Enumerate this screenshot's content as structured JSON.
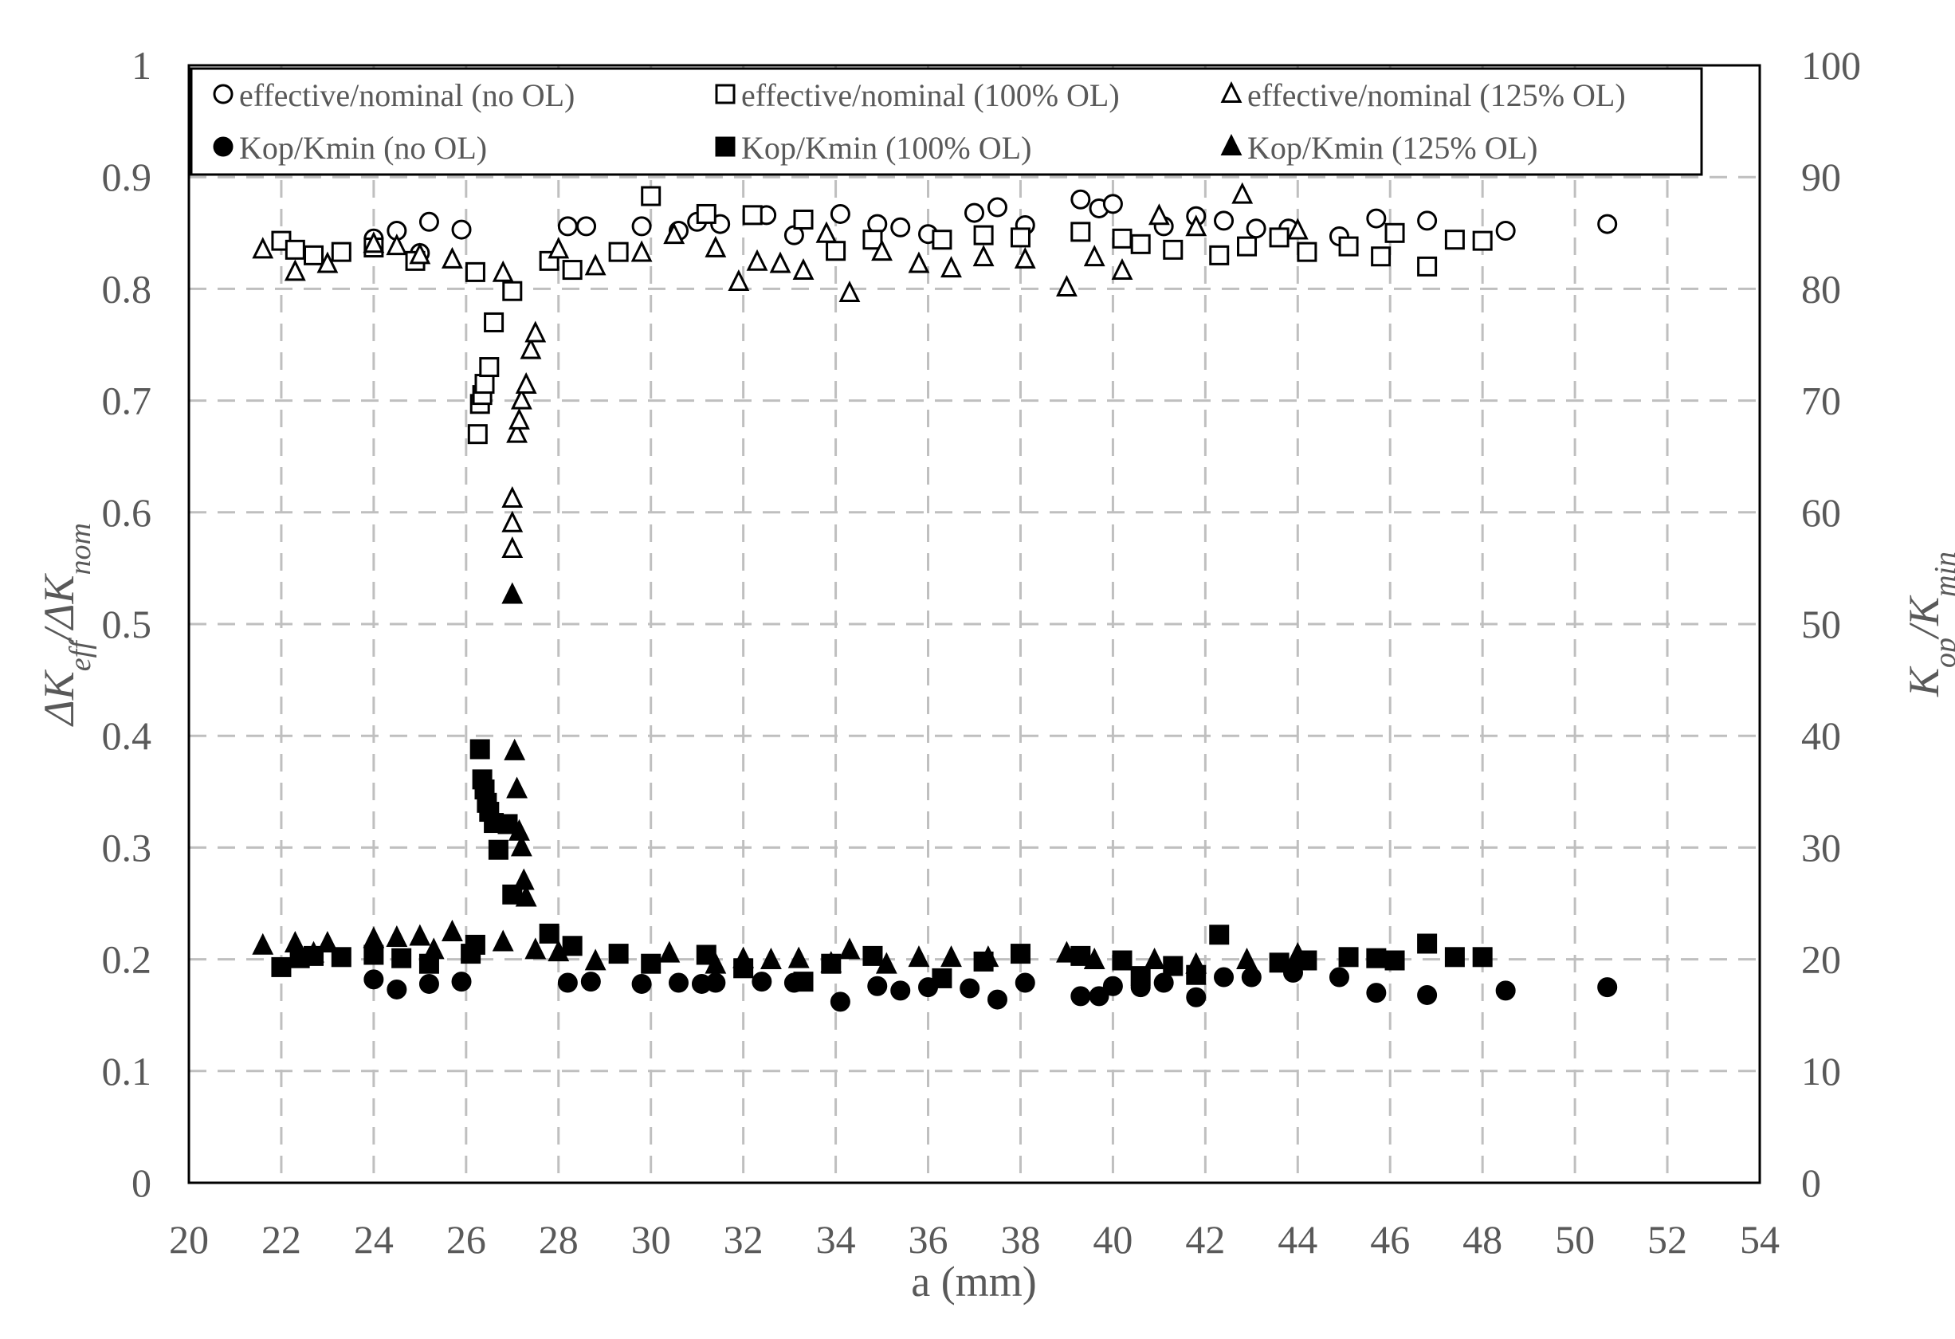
{
  "chart_data": {
    "type": "scatter",
    "title": "",
    "xlabel": "a (mm)",
    "ylabel_left": "ΔKeff/ΔKnom",
    "ylabel_right": "Kop/Kmin",
    "xlim": [
      20,
      54
    ],
    "ylim_left": [
      0,
      1
    ],
    "ylim_right": [
      0,
      100
    ],
    "x_ticks": [
      "20",
      "22",
      "24",
      "26",
      "28",
      "30",
      "32",
      "34",
      "36",
      "38",
      "40",
      "42",
      "44",
      "46",
      "48",
      "50",
      "52",
      "54"
    ],
    "y_left_ticks": [
      "0",
      "0.1",
      "0.2",
      "0.3",
      "0.4",
      "0.5",
      "0.6",
      "0.7",
      "0.8",
      "0.9",
      "1"
    ],
    "y_right_ticks": [
      "0",
      "10",
      "20",
      "30",
      "40",
      "50",
      "60",
      "70",
      "80",
      "90",
      "100"
    ],
    "grid": true,
    "legend_position": "top",
    "series": [
      {
        "name": "effective/nominal (no OL)",
        "axis": "left",
        "marker": "circle",
        "filled": false,
        "x": [
          24.0,
          24.5,
          25.0,
          25.2,
          25.9,
          28.2,
          28.6,
          29.8,
          30.6,
          31.0,
          31.5,
          32.5,
          33.1,
          34.1,
          34.9,
          35.4,
          36.0,
          37.0,
          37.5,
          38.1,
          39.3,
          39.7,
          40.0,
          41.1,
          41.8,
          42.4,
          43.1,
          43.8,
          44.9,
          45.7,
          46.8,
          48.5,
          50.7
        ],
        "y": [
          0.845,
          0.852,
          0.832,
          0.86,
          0.853,
          0.856,
          0.856,
          0.856,
          0.852,
          0.86,
          0.858,
          0.866,
          0.848,
          0.867,
          0.858,
          0.855,
          0.849,
          0.868,
          0.873,
          0.857,
          0.88,
          0.872,
          0.876,
          0.856,
          0.865,
          0.861,
          0.854,
          0.854,
          0.847,
          0.863,
          0.861,
          0.852,
          0.858
        ]
      },
      {
        "name": "effective/nominal (100% OL)",
        "axis": "left",
        "marker": "square",
        "filled": false,
        "x": [
          22.0,
          22.3,
          22.7,
          23.3,
          24.0,
          24.9,
          26.2,
          26.25,
          26.3,
          26.35,
          26.4,
          26.5,
          26.6,
          27.0,
          27.8,
          28.3,
          29.3,
          30.0,
          31.2,
          32.2,
          33.3,
          34.0,
          34.8,
          36.3,
          37.2,
          38.0,
          39.3,
          40.2,
          40.6,
          41.3,
          42.3,
          42.9,
          43.6,
          44.2,
          45.1,
          45.8,
          46.1,
          46.8,
          47.4,
          48.0
        ],
        "y": [
          0.843,
          0.835,
          0.83,
          0.833,
          0.837,
          0.825,
          0.815,
          0.67,
          0.697,
          0.705,
          0.715,
          0.73,
          0.77,
          0.798,
          0.825,
          0.817,
          0.833,
          0.883,
          0.867,
          0.866,
          0.862,
          0.834,
          0.844,
          0.844,
          0.848,
          0.846,
          0.851,
          0.845,
          0.84,
          0.835,
          0.83,
          0.838,
          0.846,
          0.833,
          0.838,
          0.829,
          0.85,
          0.82,
          0.844,
          0.843
        ]
      },
      {
        "name": "effective/nominal (125% OL)",
        "axis": "left",
        "marker": "triangle",
        "filled": false,
        "x": [
          21.6,
          22.3,
          23.0,
          24.0,
          24.5,
          25.0,
          25.7,
          26.8,
          27.0,
          27.0,
          27.0,
          27.1,
          27.15,
          27.2,
          27.3,
          27.4,
          27.5,
          28.0,
          28.8,
          29.8,
          30.5,
          31.4,
          31.9,
          32.3,
          32.8,
          33.3,
          33.8,
          34.3,
          35.0,
          35.8,
          36.5,
          37.2,
          38.1,
          39.0,
          39.6,
          40.2,
          41.0,
          41.8,
          42.8,
          44.0
        ],
        "y": [
          0.835,
          0.815,
          0.822,
          0.84,
          0.838,
          0.83,
          0.826,
          0.814,
          0.567,
          0.59,
          0.612,
          0.67,
          0.682,
          0.7,
          0.714,
          0.745,
          0.76,
          0.835,
          0.82,
          0.832,
          0.848,
          0.836,
          0.806,
          0.824,
          0.822,
          0.816,
          0.849,
          0.796,
          0.833,
          0.822,
          0.818,
          0.828,
          0.826,
          0.801,
          0.828,
          0.816,
          0.865,
          0.855,
          0.884,
          0.852
        ]
      },
      {
        "name": "Kop/Kmin (no OL)",
        "axis": "right",
        "marker": "circle",
        "filled": true,
        "x": [
          24.0,
          24.5,
          25.2,
          25.9,
          28.2,
          28.7,
          29.8,
          30.6,
          31.1,
          31.4,
          32.4,
          33.1,
          34.1,
          34.9,
          35.4,
          36.0,
          36.9,
          37.5,
          38.1,
          39.3,
          39.7,
          40.0,
          40.6,
          41.1,
          41.8,
          42.4,
          43.0,
          43.9,
          44.9,
          45.7,
          46.8,
          48.5,
          50.7
        ],
        "y": [
          18.2,
          17.3,
          17.8,
          18.0,
          17.9,
          18.0,
          17.8,
          17.9,
          17.8,
          17.9,
          18.0,
          17.9,
          16.2,
          17.6,
          17.2,
          17.5,
          17.4,
          16.4,
          17.9,
          16.7,
          16.7,
          17.6,
          17.5,
          17.9,
          16.6,
          18.4,
          18.4,
          18.8,
          18.4,
          17.0,
          16.8,
          17.2,
          17.5
        ]
      },
      {
        "name": "Kop/Kmin (100% OL)",
        "axis": "right",
        "marker": "square",
        "filled": true,
        "x": [
          22.0,
          22.4,
          22.7,
          23.3,
          24.0,
          24.6,
          25.2,
          26.1,
          26.2,
          26.3,
          26.35,
          26.4,
          26.45,
          26.5,
          26.6,
          26.7,
          26.9,
          27.0,
          27.8,
          28.3,
          29.3,
          30.0,
          31.2,
          32.0,
          33.3,
          33.9,
          34.8,
          36.3,
          37.2,
          38.0,
          39.3,
          40.2,
          40.6,
          41.3,
          41.8,
          42.3,
          43.6,
          44.2,
          45.1,
          45.7,
          46.1,
          46.8,
          47.4,
          48.0
        ],
        "y": [
          19.3,
          20.1,
          20.3,
          20.2,
          20.4,
          20.1,
          19.6,
          20.5,
          21.3,
          38.8,
          36.1,
          35.2,
          34.0,
          33.2,
          32.2,
          29.8,
          32.1,
          25.8,
          22.3,
          21.2,
          20.5,
          19.6,
          20.4,
          19.2,
          18.0,
          19.6,
          20.3,
          18.3,
          19.8,
          20.5,
          20.3,
          19.9,
          18.5,
          19.4,
          18.6,
          22.2,
          19.7,
          19.9,
          20.2,
          20.1,
          19.9,
          21.4,
          20.2,
          20.2
        ]
      },
      {
        "name": "Kop/Kmin (125% OL)",
        "axis": "right",
        "marker": "triangle",
        "filled": true,
        "x": [
          21.6,
          22.3,
          22.7,
          23.0,
          24.0,
          24.5,
          25.0,
          25.3,
          25.7,
          26.8,
          27.0,
          27.05,
          27.1,
          27.15,
          27.2,
          27.25,
          27.3,
          27.5,
          28.0,
          28.8,
          30.4,
          31.4,
          32.0,
          32.6,
          33.2,
          33.9,
          34.3,
          35.1,
          35.8,
          36.5,
          37.3,
          39.0,
          39.6,
          40.9,
          41.8,
          42.9,
          44.0
        ],
        "y": [
          21.2,
          21.4,
          20.5,
          21.4,
          21.8,
          21.9,
          22.0,
          20.8,
          22.4,
          21.5,
          52.6,
          38.6,
          35.2,
          31.4,
          30.0,
          27.0,
          25.5,
          20.8,
          20.6,
          19.8,
          20.5,
          19.5,
          20.0,
          19.9,
          20.0,
          19.6,
          20.8,
          19.5,
          20.1,
          20.1,
          20.1,
          20.5,
          19.9,
          19.9,
          19.5,
          19.9,
          20.4
        ]
      }
    ]
  }
}
